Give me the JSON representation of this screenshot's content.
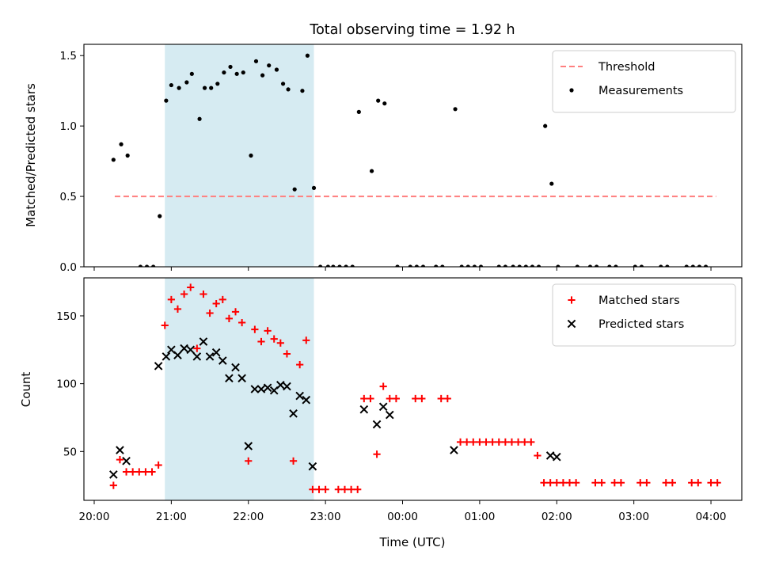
{
  "title": "Total observing time = 1.92 h",
  "colors": {
    "shade": "#add8e6",
    "threshold": "#ff7f7f",
    "measurement": "#000000",
    "matched": "#ff0000",
    "predicted": "#000000"
  },
  "x_axis": {
    "label": "Time (UTC)",
    "ticks": [
      {
        "h": 20,
        "label": "20:00"
      },
      {
        "h": 21,
        "label": "21:00"
      },
      {
        "h": 22,
        "label": "22:00"
      },
      {
        "h": 23,
        "label": "23:00"
      },
      {
        "h": 24,
        "label": "00:00"
      },
      {
        "h": 25,
        "label": "01:00"
      },
      {
        "h": 26,
        "label": "02:00"
      },
      {
        "h": 27,
        "label": "03:00"
      },
      {
        "h": 28,
        "label": "04:00"
      }
    ],
    "xlim": [
      "19:52",
      "04:24"
    ]
  },
  "chart_data": [
    {
      "type": "scatter",
      "panel": "top",
      "ylabel": "Matched/Predicted stars",
      "ylim": [
        0,
        1.58
      ],
      "yticks": [
        {
          "v": 0,
          "label": "0.0"
        },
        {
          "v": 0.5,
          "label": "0.5"
        },
        {
          "v": 1.0,
          "label": "1.0"
        },
        {
          "v": 1.5,
          "label": "1.5"
        }
      ],
      "shaded_span": {
        "start": "20:55",
        "end": "22:51"
      },
      "threshold": {
        "name": "Threshold",
        "value": 0.5,
        "x_start": "20:16",
        "x_end": "04:04"
      },
      "legend": {
        "position": "upper right",
        "entries": [
          "Threshold",
          "Measurements"
        ]
      },
      "series": [
        {
          "name": "Measurements",
          "x": [
            "20:15",
            "20:21",
            "20:26",
            "20:31",
            "20:36",
            "20:41",
            "20:46",
            "20:51",
            "20:56",
            "21:00",
            "21:06",
            "21:12",
            "21:16",
            "21:22",
            "21:26",
            "21:31",
            "21:36",
            "21:41",
            "21:46",
            "21:51",
            "21:56",
            "22:02",
            "22:06",
            "22:11",
            "22:16",
            "22:22",
            "22:27",
            "22:31",
            "22:36",
            "22:42",
            "22:46",
            "22:51",
            "22:56",
            "23:02",
            "23:06",
            "23:11",
            "23:16",
            "23:21",
            "23:26",
            "23:31",
            "23:36",
            "23:41",
            "23:46",
            "23:51",
            "23:56",
            "00:00",
            "00:06",
            "00:11",
            "00:16",
            "00:21",
            "00:26",
            "00:31",
            "00:36",
            "00:41",
            "00:46",
            "00:51",
            "00:56",
            "01:01",
            "01:06",
            "01:11",
            "01:15",
            "01:20",
            "01:26",
            "01:31",
            "01:36",
            "01:41",
            "01:46",
            "01:51",
            "01:56",
            "02:01",
            "02:06",
            "02:11",
            "02:16",
            "02:21",
            "02:26",
            "02:31",
            "02:36",
            "02:41",
            "02:46",
            "02:51",
            "02:56",
            "03:01",
            "03:06",
            "03:11",
            "03:16",
            "03:21",
            "03:26",
            "03:31",
            "03:36",
            "03:41",
            "03:46",
            "03:51",
            "03:56",
            "04:01",
            "04:04"
          ],
          "y": [
            0.76,
            0.87,
            0.79,
            null,
            0.0,
            0.0,
            0.0,
            0.36,
            1.18,
            1.29,
            1.27,
            1.31,
            1.37,
            1.05,
            1.27,
            1.27,
            1.3,
            1.38,
            1.42,
            1.37,
            1.38,
            0.79,
            1.46,
            1.36,
            1.43,
            1.4,
            1.3,
            1.26,
            0.55,
            1.25,
            1.5,
            0.56,
            0.0,
            0.0,
            0.0,
            0.0,
            0.0,
            0.0,
            1.1,
            null,
            0.68,
            1.18,
            1.16,
            null,
            0.0,
            null,
            0.0,
            0.0,
            0.0,
            null,
            0.0,
            0.0,
            null,
            1.12,
            0.0,
            0.0,
            0.0,
            0.0,
            null,
            null,
            0.0,
            0.0,
            0.0,
            0.0,
            0.0,
            0.0,
            0.0,
            1.0,
            0.59,
            0.0,
            null,
            null,
            0.0,
            null,
            0.0,
            0.0,
            null,
            0.0,
            0.0,
            null,
            null,
            0.0,
            0.0,
            null,
            null,
            0.0,
            0.0,
            null,
            null,
            0.0,
            0.0,
            0.0,
            0.0,
            null,
            null
          ]
        }
      ]
    },
    {
      "type": "scatter",
      "panel": "bottom",
      "ylabel": "Count",
      "ylim": [
        14,
        178
      ],
      "yticks": [
        {
          "v": 50,
          "label": "50"
        },
        {
          "v": 100,
          "label": "100"
        },
        {
          "v": 150,
          "label": "150"
        }
      ],
      "shaded_span": {
        "start": "20:55",
        "end": "22:51"
      },
      "legend": {
        "position": "upper right",
        "entries": [
          "Matched stars",
          "Predicted stars"
        ]
      },
      "series": [
        {
          "name": "Matched stars",
          "marker": "plus",
          "x": [
            "20:15",
            "20:20",
            "20:25",
            "20:30",
            "20:35",
            "20:40",
            "20:45",
            "20:50",
            "20:55",
            "21:00",
            "21:05",
            "21:10",
            "21:15",
            "21:20",
            "21:25",
            "21:30",
            "21:35",
            "21:40",
            "21:45",
            "21:50",
            "21:55",
            "22:00",
            "22:05",
            "22:10",
            "22:15",
            "22:20",
            "22:25",
            "22:30",
            "22:35",
            "22:40",
            "22:45",
            "22:50",
            "22:55",
            "23:00",
            "23:10",
            "23:15",
            "23:20",
            "23:25",
            "23:30",
            "23:35",
            "23:40",
            "23:45",
            "23:50",
            "23:55",
            "00:10",
            "00:15",
            "00:30",
            "00:35",
            "00:45",
            "00:50",
            "00:55",
            "01:00",
            "01:05",
            "01:10",
            "01:15",
            "01:20",
            "01:25",
            "01:30",
            "01:35",
            "01:40",
            "01:45",
            "01:50",
            "01:55",
            "02:00",
            "02:05",
            "02:10",
            "02:15",
            "02:30",
            "02:35",
            "02:45",
            "02:50",
            "03:05",
            "03:10",
            "03:25",
            "03:30",
            "03:45",
            "03:50",
            "04:00",
            "04:05"
          ],
          "y": [
            25,
            44,
            35,
            35,
            35,
            35,
            35,
            40,
            143,
            162,
            155,
            166,
            171,
            126,
            166,
            152,
            159,
            162,
            148,
            153,
            145,
            43,
            140,
            131,
            139,
            133,
            130,
            122,
            43,
            114,
            132,
            22,
            22,
            22,
            22,
            22,
            22,
            22,
            89,
            89,
            48,
            98,
            89,
            89,
            89,
            89,
            89,
            89,
            57,
            57,
            57,
            57,
            57,
            57,
            57,
            57,
            57,
            57,
            57,
            57,
            47,
            27,
            27,
            27,
            27,
            27,
            27,
            27,
            27,
            27,
            27,
            27,
            27,
            27,
            27,
            27,
            27,
            27,
            27
          ]
        },
        {
          "name": "Predicted stars",
          "marker": "x",
          "x": [
            "20:15",
            "20:20",
            "20:25",
            "20:50",
            "20:56",
            "21:00",
            "21:05",
            "21:10",
            "21:15",
            "21:20",
            "21:25",
            "21:30",
            "21:35",
            "21:40",
            "21:45",
            "21:50",
            "21:55",
            "22:00",
            "22:05",
            "22:10",
            "22:15",
            "22:20",
            "22:25",
            "22:30",
            "22:35",
            "22:40",
            "22:45",
            "22:50",
            "23:30",
            "23:40",
            "23:45",
            "23:50",
            "00:40",
            "01:55",
            "02:00"
          ],
          "y": [
            33,
            51,
            43,
            113,
            120,
            125,
            121,
            126,
            125,
            120,
            131,
            120,
            123,
            117,
            104,
            112,
            104,
            54,
            96,
            96,
            97,
            95,
            99,
            98,
            78,
            91,
            88,
            39,
            81,
            70,
            83,
            77,
            51,
            47,
            46
          ]
        }
      ]
    }
  ]
}
